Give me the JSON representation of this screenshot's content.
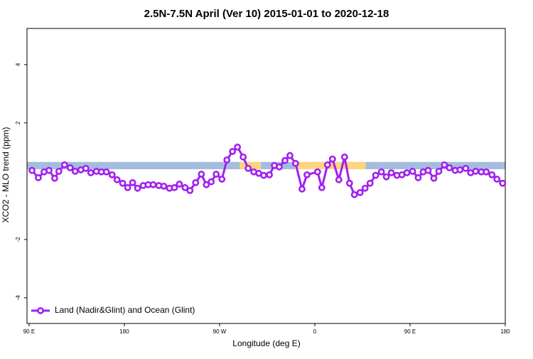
{
  "chart_data": {
    "type": "line",
    "title": "2.5N-7.5N April (Ver 10)   2015-01-01 to 2020-12-18",
    "xlabel": "Longitude (deg E)",
    "ylabel": "XCO2 - MLO trend (ppm)",
    "xlim": [
      88,
      540
    ],
    "ylim": [
      -4.88,
      5.24
    ],
    "xticks": [
      {
        "value": 90,
        "label": "90 E"
      },
      {
        "value": 180,
        "label": "180"
      },
      {
        "value": 270,
        "label": "90 W"
      },
      {
        "value": 360,
        "label": "0"
      },
      {
        "value": 450,
        "label": "90 E"
      },
      {
        "value": 540,
        "label": "180"
      }
    ],
    "yticks": [
      -4,
      -2,
      2,
      4
    ],
    "band": {
      "ylim": [
        0.41,
        0.66
      ],
      "color": "#a4bddf"
    },
    "land_regions": [
      [
        289,
        309
      ],
      [
        341,
        408
      ]
    ],
    "land_color": "#ffd47f",
    "legend": "bottom-left",
    "x": [
      92.7,
      98.7,
      104.1,
      108.8,
      114.1,
      118.1,
      123.5,
      128.8,
      133.5,
      138.9,
      143.6,
      148.3,
      153.6,
      158.3,
      163,
      168.4,
      173.1,
      178.4,
      183.1,
      187.8,
      192.5,
      197.8,
      202.5,
      207.2,
      212.6,
      217.3,
      222.6,
      227.3,
      232,
      237.4,
      242,
      247.4,
      252.8,
      257.5,
      262.1,
      266.8,
      272.2,
      276.9,
      282.2,
      286.9,
      292.3,
      297,
      302.3,
      307,
      311.7,
      317.1,
      321.8,
      326.4,
      331.8,
      336.5,
      341.8,
      347.9,
      352.6,
      362.6,
      366.6,
      372,
      376.7,
      382.7,
      388.1,
      392.8,
      397.4,
      402.8,
      407.5,
      412.2,
      417.5,
      422.9,
      427.6,
      432.3,
      437.6,
      442.3,
      447,
      452.4,
      457.7,
      462.4,
      467.1,
      472.5,
      477.2,
      482.5,
      487.2,
      492.6,
      497.2,
      502.6,
      507.3,
      512,
      517.3,
      522,
      527.4,
      532.1,
      537.5
    ],
    "series": [
      {
        "name": "Land (Nadir&Glint) and Ocean (Glint)",
        "color": "#a020f0",
        "values": [
          0.37,
          0.12,
          0.32,
          0.37,
          0.1,
          0.34,
          0.56,
          0.46,
          0.34,
          0.39,
          0.44,
          0.29,
          0.34,
          0.32,
          0.32,
          0.22,
          0.05,
          -0.07,
          -0.22,
          -0.05,
          -0.24,
          -0.15,
          -0.12,
          -0.12,
          -0.15,
          -0.17,
          -0.24,
          -0.22,
          -0.1,
          -0.22,
          -0.32,
          -0.05,
          0.24,
          -0.12,
          -0.02,
          0.24,
          0.07,
          0.73,
          1.02,
          1.17,
          0.83,
          0.44,
          0.32,
          0.27,
          0.2,
          0.22,
          0.54,
          0.49,
          0.71,
          0.88,
          0.61,
          -0.27,
          0.22,
          0.32,
          -0.22,
          0.56,
          0.76,
          0.05,
          0.83,
          -0.07,
          -0.46,
          -0.39,
          -0.24,
          -0.07,
          0.2,
          0.32,
          0.15,
          0.29,
          0.2,
          0.22,
          0.29,
          0.34,
          0.12,
          0.32,
          0.37,
          0.1,
          0.34,
          0.56,
          0.46,
          0.37,
          0.39,
          0.44,
          0.29,
          0.34,
          0.32,
          0.32,
          0.22,
          0.07,
          -0.07
        ]
      }
    ]
  }
}
